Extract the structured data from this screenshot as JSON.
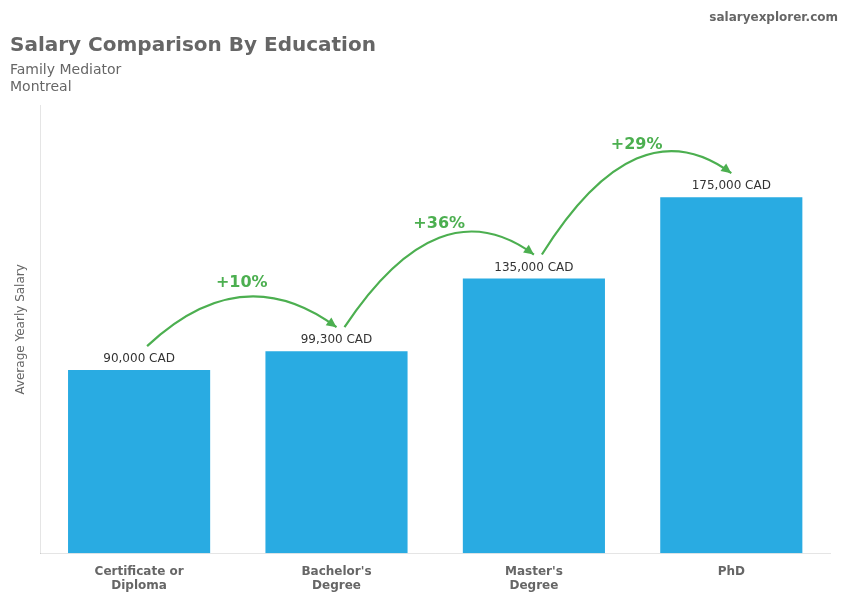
{
  "chart_data": {
    "type": "bar",
    "title": "Salary Comparison By Education",
    "subtitle": [
      "Family Mediator",
      "Montreal"
    ],
    "source": "salaryexplorer.com",
    "categories": [
      "Certificate or\nDiploma",
      "Bachelor's\nDegree",
      "Master's\nDegree",
      "PhD"
    ],
    "values": [
      90000,
      99300,
      135000,
      175000
    ],
    "value_labels": [
      "90,000 CAD",
      "99,300 CAD",
      "135,000 CAD",
      "175,000 CAD"
    ],
    "data_labels": true,
    "annotations": [
      "+10%",
      "+36%",
      "+29%"
    ],
    "color": "#29abe2",
    "ylabel": "Average Yearly Salary",
    "ylim": [
      0,
      220000
    ],
    "tick_labels": "x",
    "grid": false
  }
}
